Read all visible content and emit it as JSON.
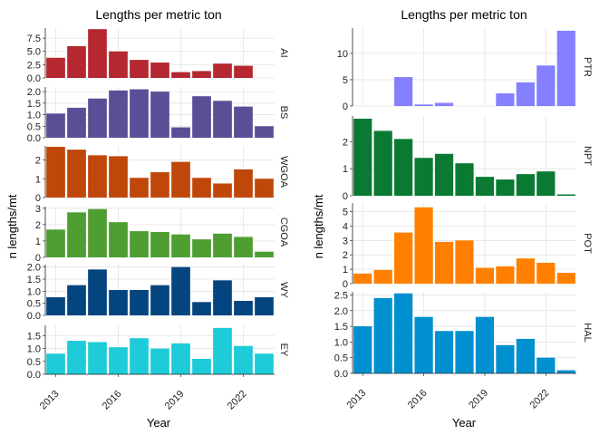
{
  "chart_data": [
    {
      "type": "bar",
      "title": "Lengths per metric ton",
      "xlabel": "Year",
      "ylabel": "n lengths/mt",
      "x_ticks": [
        2013,
        2016,
        2019,
        2022
      ],
      "years": [
        2013,
        2014,
        2015,
        2016,
        2017,
        2018,
        2019,
        2020,
        2021,
        2022,
        2023
      ],
      "facets": [
        {
          "name": "AI",
          "color": "#B5282F",
          "ylim": [
            0,
            9.4
          ],
          "ticks": [
            "0.0",
            "2.5",
            "5.0",
            "7.5"
          ],
          "tick_values": [
            0,
            2.5,
            5,
            7.5
          ],
          "values": [
            3.8,
            6.0,
            9.2,
            5.0,
            3.4,
            2.9,
            1.1,
            1.3,
            2.7,
            2.3,
            null
          ]
        },
        {
          "name": "BS",
          "color": "#5A4E97",
          "ylim": [
            0,
            2.2
          ],
          "ticks": [
            "0.0",
            "0.5",
            "1.0",
            "1.5",
            "2.0"
          ],
          "tick_values": [
            0,
            0.5,
            1,
            1.5,
            2
          ],
          "values": [
            1.05,
            1.3,
            1.7,
            2.05,
            2.1,
            2.0,
            0.45,
            1.8,
            1.6,
            1.35,
            0.5
          ]
        },
        {
          "name": "WGOA",
          "color": "#C0470A",
          "ylim": [
            0,
            2.75
          ],
          "ticks": [
            "0",
            "1",
            "2"
          ],
          "tick_values": [
            0,
            1,
            2
          ],
          "values": [
            2.7,
            2.55,
            2.25,
            2.2,
            1.05,
            1.35,
            1.9,
            1.05,
            0.75,
            1.5,
            1.0
          ]
        },
        {
          "name": "CGOA",
          "color": "#4E9E32",
          "ylim": [
            0,
            3.1
          ],
          "ticks": [
            "0",
            "1",
            "2",
            "3"
          ],
          "tick_values": [
            0,
            1,
            2,
            3
          ],
          "values": [
            1.7,
            2.75,
            2.95,
            2.15,
            1.6,
            1.55,
            1.4,
            1.1,
            1.45,
            1.25,
            0.35
          ]
        },
        {
          "name": "WY",
          "color": "#05457F",
          "ylim": [
            0,
            2.1
          ],
          "ticks": [
            "0.0",
            "0.5",
            "1.0",
            "1.5",
            "2.0"
          ],
          "tick_values": [
            0,
            0.5,
            1,
            1.5,
            2
          ],
          "values": [
            0.75,
            1.25,
            1.9,
            1.05,
            1.05,
            1.25,
            2.0,
            0.55,
            1.45,
            0.6,
            0.75
          ]
        },
        {
          "name": "EY",
          "color": "#1ECBD8",
          "ylim": [
            0,
            1.9
          ],
          "ticks": [
            "0.0",
            "0.5",
            "1.0",
            "1.5"
          ],
          "tick_values": [
            0,
            0.5,
            1,
            1.5
          ],
          "values": [
            0.8,
            1.3,
            1.25,
            1.05,
            1.4,
            1.0,
            1.2,
            0.6,
            1.8,
            1.1,
            0.8
          ]
        }
      ]
    },
    {
      "type": "bar",
      "title": "Lengths per metric ton",
      "xlabel": "Year",
      "ylabel": "n lengths/mt",
      "x_ticks": [
        2013,
        2016,
        2019,
        2022
      ],
      "years": [
        2013,
        2014,
        2015,
        2016,
        2017,
        2018,
        2019,
        2020,
        2021,
        2022,
        2023
      ],
      "facets": [
        {
          "name": "PTR",
          "color": "#8480FF",
          "ylim": [
            0,
            14.8
          ],
          "ticks": [
            "0",
            "5",
            "10"
          ],
          "tick_values": [
            0,
            5,
            10
          ],
          "values": [
            null,
            null,
            5.5,
            0.3,
            0.6,
            null,
            null,
            2.4,
            4.5,
            7.7,
            14.3
          ]
        },
        {
          "name": "NPT",
          "color": "#0A7A32",
          "ylim": [
            0,
            2.95
          ],
          "ticks": [
            "0",
            "1",
            "2"
          ],
          "tick_values": [
            0,
            1,
            2
          ],
          "values": [
            2.85,
            2.4,
            2.1,
            1.4,
            1.55,
            1.2,
            0.7,
            0.6,
            0.8,
            0.9,
            0.05
          ]
        },
        {
          "name": "POT",
          "color": "#FF8000",
          "ylim": [
            0,
            5.6
          ],
          "ticks": [
            "0",
            "1",
            "2",
            "3",
            "4",
            "5"
          ],
          "tick_values": [
            0,
            1,
            2,
            3,
            4,
            5
          ],
          "values": [
            0.7,
            0.95,
            3.55,
            5.3,
            2.9,
            3.0,
            1.1,
            1.2,
            1.75,
            1.45,
            0.75
          ]
        },
        {
          "name": "HAL",
          "color": "#0090D0",
          "ylim": [
            0,
            2.6
          ],
          "ticks": [
            "0.0",
            "0.5",
            "1.0",
            "1.5",
            "2.0",
            "2.5"
          ],
          "tick_values": [
            0,
            0.5,
            1,
            1.5,
            2,
            2.5
          ],
          "values": [
            1.5,
            2.4,
            2.55,
            1.8,
            1.35,
            1.35,
            1.8,
            0.9,
            1.1,
            0.5,
            0.1
          ]
        }
      ]
    }
  ]
}
